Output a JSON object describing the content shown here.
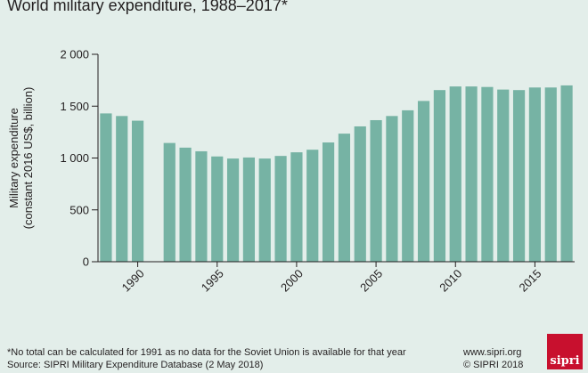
{
  "title": "World military expenditure, 1988–2017*",
  "footnote": "*No total can be calculated for 1991 as no data for the Soviet Union is available for that year",
  "source": "Source: SIPRI Military Expenditure Database (2 May 2018)",
  "website": "www.sipri.org",
  "copyright": "© SIPRI 2018",
  "logo_text": "sipri",
  "colors": {
    "bar": "#76b3a4",
    "axis": "#231f20",
    "background": "#e3eeea",
    "logo": "#c8102e"
  },
  "chart_data": {
    "type": "bar",
    "title": "World military expenditure, 1988–2017*",
    "ylabel_line1": "Military expenditure",
    "ylabel_line2": "(constant 2016 US$, billion)",
    "xlabel": "",
    "ylim": [
      0,
      2000
    ],
    "yticks": [
      0,
      500,
      1000,
      1500,
      2000
    ],
    "ytick_labels": [
      "0",
      "500",
      "1 000",
      "1 500",
      "2 000"
    ],
    "xticks": [
      1990,
      1995,
      2000,
      2005,
      2010,
      2015
    ],
    "xtick_labels": [
      "1990",
      "1995",
      "2000",
      "2005",
      "2010",
      "2015"
    ],
    "grid": false,
    "categories": [
      1988,
      1989,
      1990,
      1991,
      1992,
      1993,
      1994,
      1995,
      1996,
      1997,
      1998,
      1999,
      2000,
      2001,
      2002,
      2003,
      2004,
      2005,
      2006,
      2007,
      2008,
      2009,
      2010,
      2011,
      2012,
      2013,
      2014,
      2015,
      2016,
      2017
    ],
    "values": [
      1430,
      1405,
      1360,
      null,
      1145,
      1100,
      1065,
      1015,
      995,
      1005,
      995,
      1020,
      1055,
      1080,
      1150,
      1235,
      1305,
      1365,
      1405,
      1460,
      1550,
      1655,
      1690,
      1690,
      1685,
      1660,
      1655,
      1680,
      1680,
      1700
    ]
  }
}
